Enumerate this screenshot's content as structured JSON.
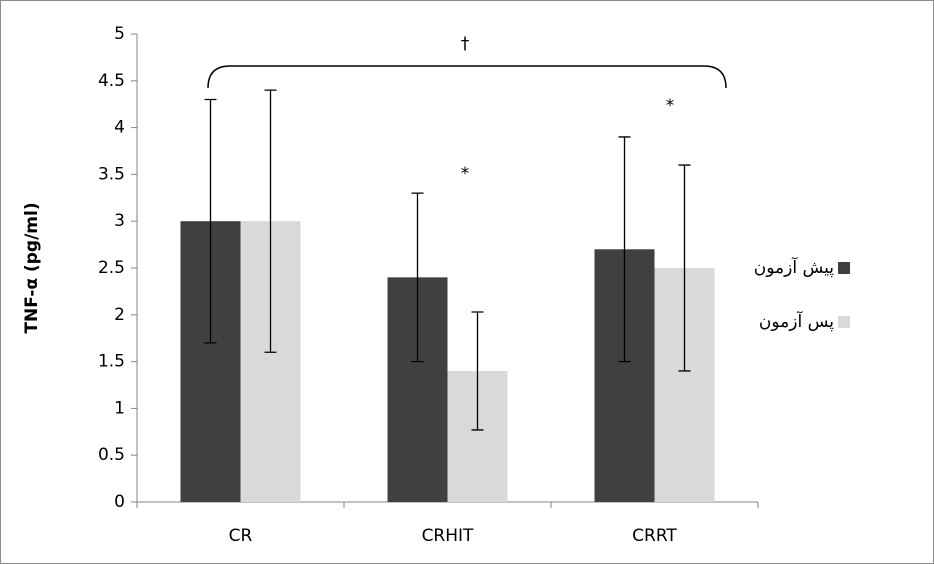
{
  "chart_data": {
    "type": "bar",
    "y_label": "TNF-α (pg/ml)",
    "categories": [
      "CR",
      "CRHIT",
      "CRRT"
    ],
    "series": [
      {
        "name": "پیش آزمون",
        "color": "#404040",
        "values": [
          3,
          2.4,
          2.7
        ],
        "errors": [
          1.3,
          0.9,
          1.2
        ]
      },
      {
        "name": "پس آزمون",
        "color": "#d9d9d9",
        "values": [
          3,
          1.4,
          2.5
        ],
        "errors": [
          1.4,
          0.63,
          1.1
        ]
      }
    ],
    "ylim": [
      0,
      5
    ],
    "yticks": [
      0,
      0.5,
      1,
      1.5,
      2,
      2.5,
      3,
      3.5,
      4,
      4.5,
      5
    ],
    "legend": "right",
    "annotations": [
      "†",
      "*",
      "*"
    ]
  }
}
